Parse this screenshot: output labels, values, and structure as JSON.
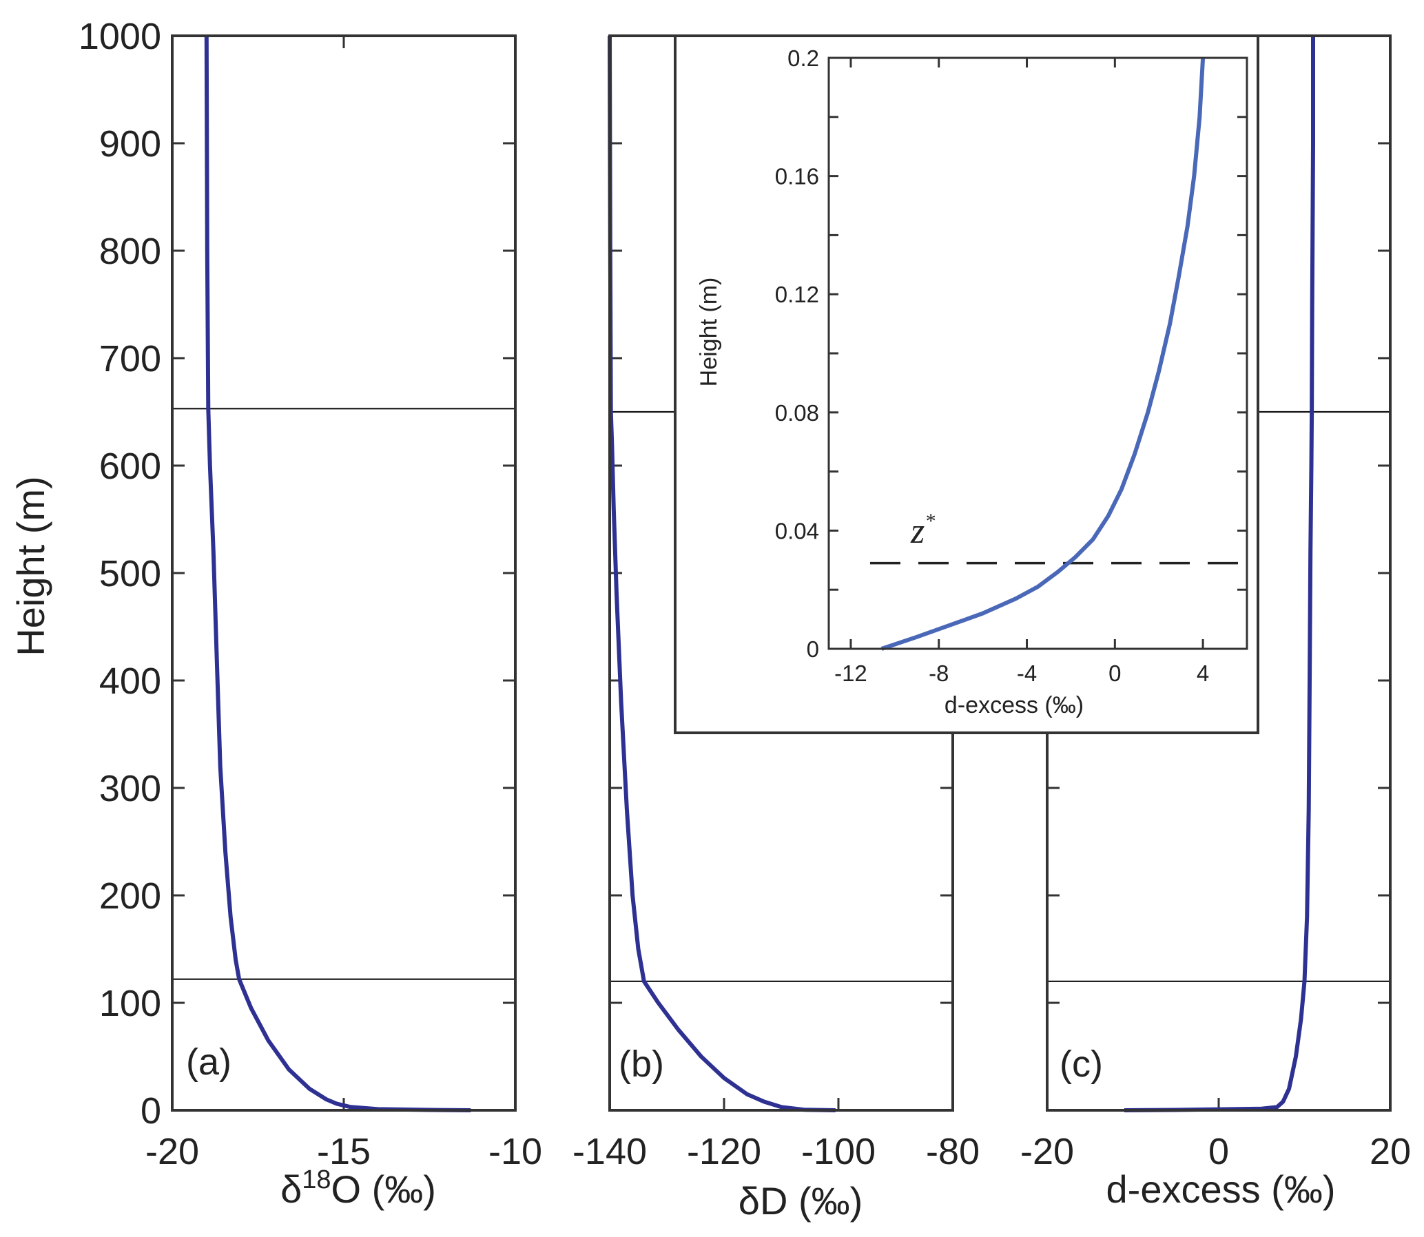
{
  "chart_data": [
    {
      "type": "line",
      "panel": "(a)",
      "xlabel": "δ18O (‰)",
      "ylabel": "Height (m)",
      "xlim": [
        -20,
        -10
      ],
      "ylim": [
        0,
        1000
      ],
      "xticks": [
        -20,
        -15,
        -10
      ],
      "yticks": [
        0,
        100,
        200,
        300,
        400,
        500,
        600,
        700,
        800,
        900,
        1000
      ],
      "hlines": [
        122,
        653
      ],
      "color": "#2e3192",
      "series": [
        {
          "x": [
            -11.3,
            -12.5,
            -14.0,
            -14.8,
            -15.2,
            -15.5,
            -16.0,
            -16.6,
            -17.2,
            -17.7,
            -18.05,
            -18.15,
            -18.3,
            -18.45,
            -18.6,
            -18.7,
            -18.8,
            -18.9,
            -18.95,
            -18.98,
            -19.0
          ],
          "y": [
            0,
            0.3,
            1,
            3,
            6,
            10,
            20,
            38,
            65,
            95,
            122,
            140,
            180,
            240,
            320,
            420,
            520,
            600,
            653,
            800,
            1000
          ]
        }
      ]
    },
    {
      "type": "line",
      "panel": "(b)",
      "xlabel": "δD (‰)",
      "ylabel": "",
      "xlim": [
        -140,
        -80
      ],
      "ylim": [
        0,
        1000
      ],
      "xticks": [
        -140,
        -120,
        -100,
        -80
      ],
      "hlines": [
        120,
        650
      ],
      "color": "#2e3192",
      "series": [
        {
          "x": [
            -100.5,
            -106,
            -110,
            -113,
            -116,
            -120,
            -124,
            -128,
            -131.5,
            -134.0,
            -135.0,
            -136.0,
            -137.0,
            -138.0,
            -138.8,
            -139.3,
            -139.6,
            -139.8,
            -139.9,
            -140.0
          ],
          "y": [
            0,
            0.5,
            3,
            8,
            15,
            30,
            50,
            75,
            100,
            120,
            150,
            200,
            280,
            380,
            480,
            560,
            620,
            650,
            800,
            1000
          ]
        }
      ]
    },
    {
      "type": "line",
      "panel": "(c)",
      "xlabel": "d-excess (‰)",
      "ylabel": "",
      "xlim": [
        -20,
        20
      ],
      "ylim": [
        0,
        1000
      ],
      "xticks": [
        -20,
        0,
        20
      ],
      "hlines": [
        120,
        650
      ],
      "color": "#2e3192",
      "series": [
        {
          "x": [
            -11,
            -5,
            5,
            6.8,
            7.5,
            8.2,
            9,
            9.6,
            10.0,
            10.3,
            10.5,
            10.6,
            10.7,
            10.8,
            10.85,
            10.9,
            11.0,
            11.0
          ],
          "y": [
            0,
            0.3,
            1.5,
            3,
            8,
            20,
            50,
            85,
            120,
            180,
            280,
            400,
            520,
            600,
            650,
            750,
            900,
            1000
          ]
        }
      ]
    },
    {
      "type": "line",
      "panel": "inset",
      "xlabel": "d-excess (‰)",
      "ylabel": "Height (m)",
      "xlim": [
        -13,
        6
      ],
      "ylim": [
        0,
        0.2
      ],
      "xticks": [
        -12,
        -8,
        -4,
        0,
        4
      ],
      "yticks": [
        0,
        0.04,
        0.08,
        0.12,
        0.16,
        0.2
      ],
      "yticklabels": [
        "0",
        "0.04",
        "0.08",
        "0.12",
        "0.16",
        "0.2"
      ],
      "annotation": "z",
      "annotation_superscript": "*",
      "dashed_hline": 0.029,
      "color": "#4a68b8",
      "series": [
        {
          "x": [
            -10.6,
            -9,
            -7.5,
            -6,
            -4.5,
            -3.5,
            -2.6,
            -1.8,
            -1.0,
            -0.3,
            0.3,
            0.9,
            1.5,
            2.0,
            2.5,
            2.9,
            3.3,
            3.6,
            3.85,
            4.0
          ],
          "y": [
            0,
            0.004,
            0.008,
            0.012,
            0.017,
            0.021,
            0.026,
            0.031,
            0.037,
            0.045,
            0.054,
            0.066,
            0.08,
            0.094,
            0.11,
            0.126,
            0.143,
            0.16,
            0.18,
            0.2
          ]
        }
      ]
    }
  ]
}
